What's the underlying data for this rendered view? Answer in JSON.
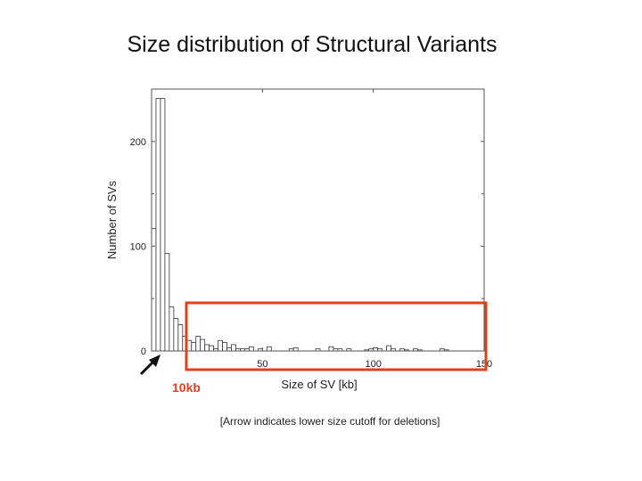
{
  "slide": {
    "title": "Size distribution of Structural Variants",
    "caption": "[Arrow indicates lower size cutoff for deletions]",
    "annotation_label": "10kb",
    "highlight_color": "#e0401c"
  },
  "chart_data": {
    "type": "bar",
    "subtype": "histogram",
    "title": "",
    "xlabel": "Size of SV [kb]",
    "ylabel": "Number of SVs",
    "xlim": [
      0,
      150
    ],
    "ylim": [
      0,
      250
    ],
    "bin_width": 2,
    "xticks": [
      50,
      100,
      150
    ],
    "yticks": [
      0,
      100,
      200
    ],
    "grid": false,
    "counts": [
      117,
      241,
      241,
      93,
      42,
      31,
      25,
      14,
      10,
      8,
      14,
      11,
      6,
      5,
      2,
      10,
      8,
      3,
      6,
      2,
      2,
      2,
      4,
      0,
      2,
      0,
      4,
      0,
      0,
      0,
      0,
      2,
      3,
      0,
      0,
      0,
      0,
      2,
      0,
      0,
      4,
      2,
      2,
      0,
      2,
      0,
      0,
      0,
      1,
      2,
      3,
      2,
      0,
      5,
      2,
      0,
      2,
      1,
      0,
      2,
      1,
      0,
      0,
      0,
      0,
      2,
      1,
      0,
      0,
      0,
      0,
      0,
      0,
      0,
      0
    ],
    "annotations": [
      {
        "type": "arrow",
        "points_to_x": 4,
        "label": ""
      },
      {
        "type": "rectangle",
        "x_range": [
          15,
          150
        ],
        "label": "10kb"
      }
    ]
  }
}
